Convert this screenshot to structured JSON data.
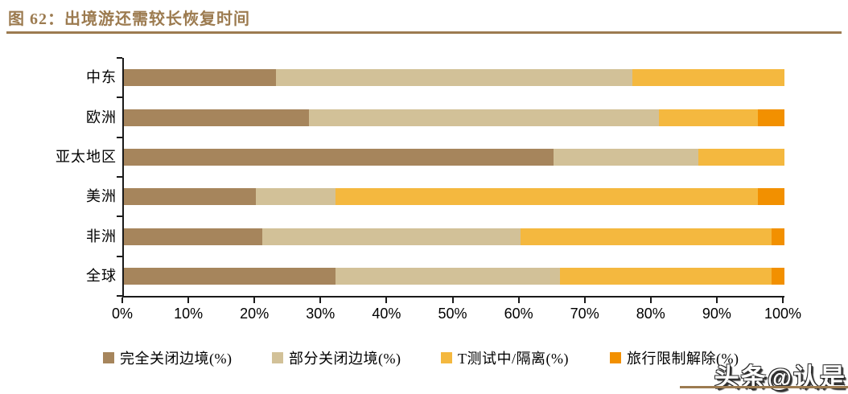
{
  "figure": {
    "title": "图 62：出境游还需较长恢复时间",
    "watermark": "头条@认是"
  },
  "colors": {
    "title_brown": "#9c7b50",
    "rule_brown": "#9c7b50",
    "axis_black": "#1a1a1a",
    "series_full_close": "#a6855c",
    "series_partial_close": "#d2c198",
    "series_testing": "#f4b83f",
    "series_lifted": "#f29000"
  },
  "chart_data": {
    "type": "bar",
    "orientation": "horizontal",
    "stacked": true,
    "title": "图 62：出境游还需较长恢复时间",
    "categories": [
      "中东",
      "欧洲",
      "亚太地区",
      "美洲",
      "非洲",
      "全球"
    ],
    "series": [
      {
        "name": "完全关闭边境(%)",
        "color": "#a6855c",
        "values": [
          23,
          28,
          65,
          20,
          21,
          32
        ]
      },
      {
        "name": "部分关闭边境(%)",
        "color": "#d2c198",
        "values": [
          54,
          53,
          22,
          12,
          39,
          34
        ]
      },
      {
        "name": "T测试中/隔离(%)",
        "color": "#f4b83f",
        "values": [
          23,
          15,
          13,
          64,
          38,
          32
        ]
      },
      {
        "name": "旅行限制解除(%)",
        "color": "#f29000",
        "values": [
          0,
          4,
          0,
          4,
          2,
          2
        ]
      }
    ],
    "xlim": [
      0,
      100
    ],
    "x_ticks": [
      "0%",
      "10%",
      "20%",
      "30%",
      "40%",
      "50%",
      "60%",
      "70%",
      "80%",
      "90%",
      "100%"
    ],
    "xlabel": "",
    "ylabel": "",
    "grid": false,
    "legend_position": "bottom"
  }
}
